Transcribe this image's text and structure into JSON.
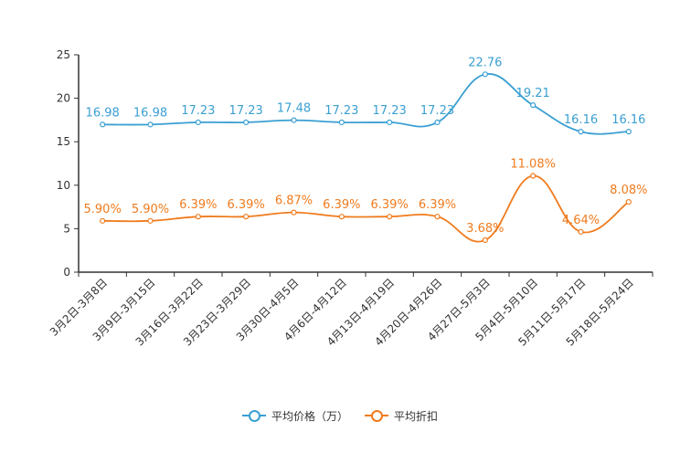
{
  "chart_data": {
    "type": "line",
    "title": "",
    "xlabel": "",
    "ylabel": "",
    "ylim": [
      0,
      25
    ],
    "yticks": [
      0,
      5,
      10,
      15,
      20,
      25
    ],
    "grid": false,
    "legend_position": "bottom",
    "categories": [
      "3月2日-3月8日",
      "3月9日-3月15日",
      "3月16日-3月22日",
      "3月23日-3月29日",
      "3月30日-4月5日",
      "4月6日-4月12日",
      "4月13日-4月19日",
      "4月20日-4月26日",
      "4月27日-5月3日",
      "5月4日-5月10日",
      "5月11日-5月17日",
      "5月18日-5月24日"
    ],
    "series": [
      {
        "name": "平均价格（万）",
        "color": "#3a9fd2",
        "values": [
          16.98,
          16.98,
          17.23,
          17.23,
          17.48,
          17.23,
          17.23,
          17.23,
          22.76,
          19.21,
          16.16,
          16.16
        ],
        "labels": [
          "16.98",
          "16.98",
          "17.23",
          "17.23",
          "17.48",
          "17.23",
          "17.23",
          "17.23",
          "22.76",
          "19.21",
          "16.16",
          "16.16"
        ]
      },
      {
        "name": "平均折扣",
        "color": "#f07b1d",
        "values": [
          5.9,
          5.9,
          6.39,
          6.39,
          6.87,
          6.39,
          6.39,
          6.39,
          3.68,
          11.08,
          4.64,
          8.08
        ],
        "labels": [
          "5.90%",
          "5.90%",
          "6.39%",
          "6.39%",
          "6.87%",
          "6.39%",
          "6.39%",
          "6.39%",
          "3.68%",
          "11.08%",
          "4.64%",
          "8.08%"
        ]
      }
    ]
  }
}
